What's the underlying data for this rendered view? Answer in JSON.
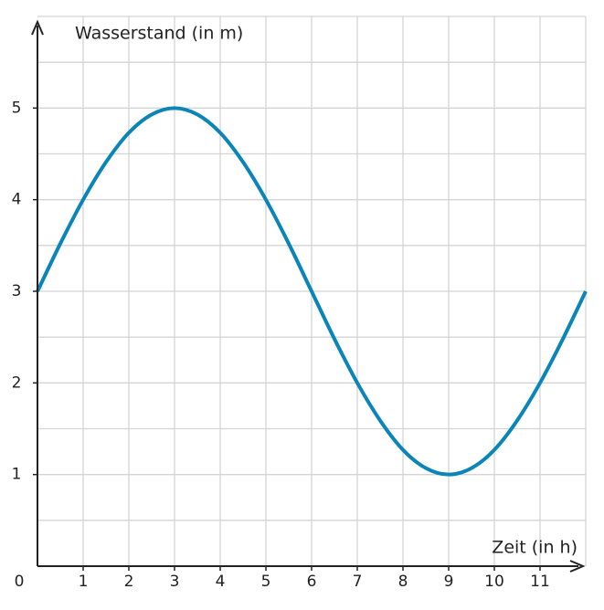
{
  "chart_data": {
    "type": "line",
    "y_label": "Wasserstand (in m)",
    "x_label": "Zeit (in h)",
    "x": [
      0,
      0.5,
      1,
      1.5,
      2,
      2.5,
      3,
      3.5,
      4,
      4.5,
      5,
      5.5,
      6,
      6.5,
      7,
      7.5,
      8,
      8.5,
      9,
      9.5,
      10,
      10.5,
      11,
      11.5,
      12
    ],
    "series": [
      {
        "color": "#0a85b8",
        "values": [
          3,
          3.52,
          4,
          4.41,
          4.73,
          4.93,
          5,
          4.93,
          4.73,
          4.41,
          4,
          3.52,
          3,
          2.48,
          2,
          1.59,
          1.27,
          1.07,
          1,
          1.07,
          1.27,
          1.59,
          2,
          2.48,
          3
        ]
      }
    ],
    "xlim": [
      0,
      12
    ],
    "ylim": [
      0,
      6
    ],
    "xticks": [
      0,
      1,
      2,
      3,
      4,
      5,
      6,
      7,
      8,
      9,
      10,
      11
    ],
    "yticks": [
      1,
      2,
      3,
      4,
      5
    ],
    "grid": true
  }
}
